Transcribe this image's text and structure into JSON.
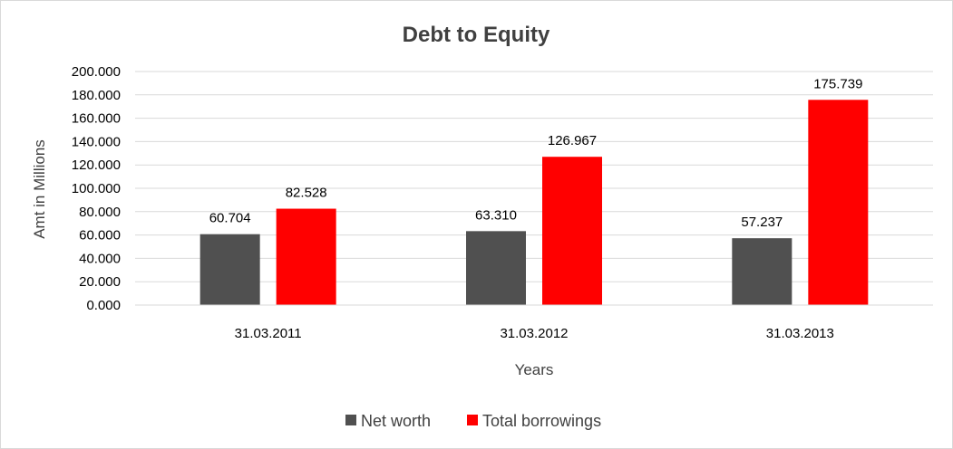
{
  "chart_data": {
    "type": "bar",
    "title": "Debt to Equity",
    "xlabel": "Years",
    "ylabel": "Amt in Millions",
    "categories": [
      "31.03.2011",
      "31.03.2012",
      "31.03.2013"
    ],
    "series": [
      {
        "name": "Net worth",
        "color": "#505050",
        "values": [
          60.704,
          63.31,
          57.237
        ],
        "labels": [
          "60.704",
          "63.310",
          "57.237"
        ]
      },
      {
        "name": "Total borrowings",
        "color": "#ff0000",
        "values": [
          82.528,
          126.967,
          175.739
        ],
        "labels": [
          "82.528",
          "126.967",
          "175.739"
        ]
      }
    ],
    "ylim": [
      0,
      200
    ],
    "yticks": [
      {
        "value": 0,
        "label": "0.000"
      },
      {
        "value": 20,
        "label": "20.000"
      },
      {
        "value": 40,
        "label": "40.000"
      },
      {
        "value": 60,
        "label": "60.000"
      },
      {
        "value": 80,
        "label": "80.000"
      },
      {
        "value": 100,
        "label": "100.000"
      },
      {
        "value": 120,
        "label": "120.000"
      },
      {
        "value": 140,
        "label": "140.000"
      },
      {
        "value": 160,
        "label": "160.000"
      },
      {
        "value": 180,
        "label": "180.000"
      },
      {
        "value": 200,
        "label": "200.000"
      }
    ],
    "grid": true,
    "legend": "bottom"
  }
}
